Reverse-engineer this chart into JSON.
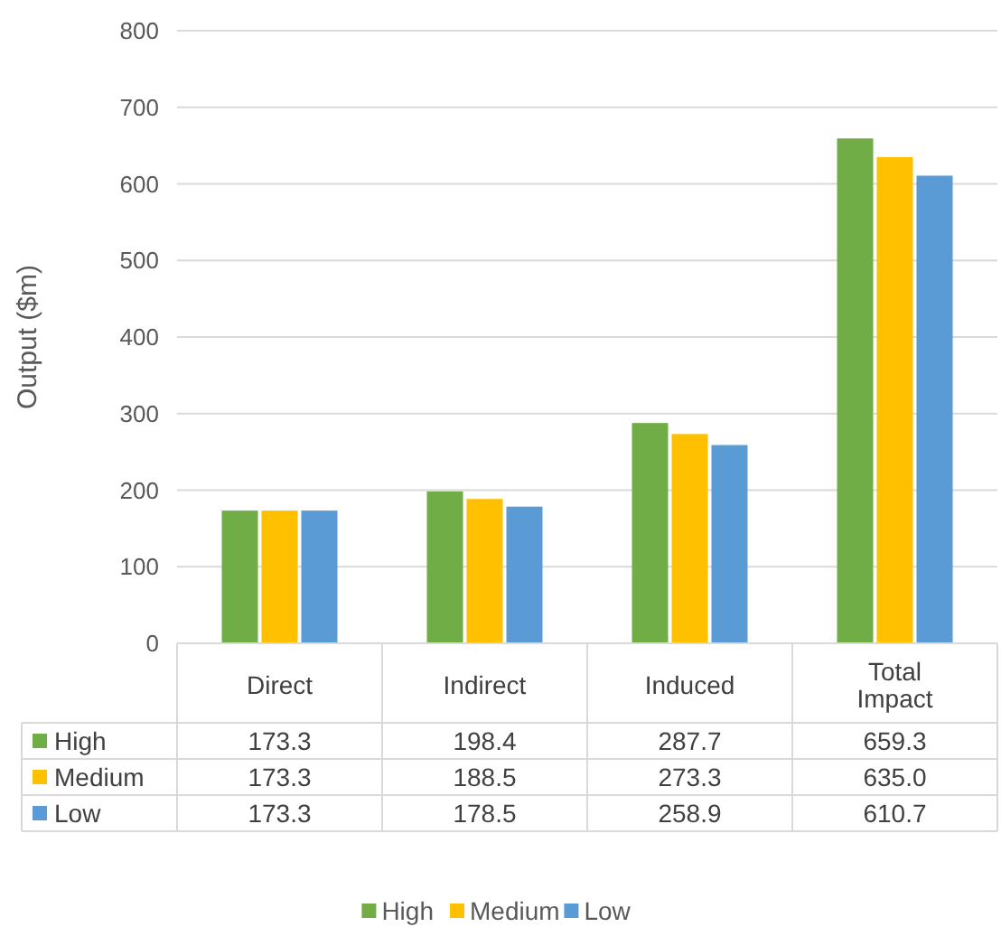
{
  "chart_data": {
    "type": "bar",
    "ylabel": "Output ($m)",
    "categories": [
      "Direct",
      "Indirect",
      "Induced",
      "Total Impact"
    ],
    "series": [
      {
        "name": "High",
        "color": "#70ad47",
        "values": [
          173.3,
          198.4,
          287.7,
          659.3
        ],
        "value_labels": [
          "173.3",
          "198.4",
          "287.7",
          "659.3"
        ]
      },
      {
        "name": "Medium",
        "color": "#ffc000",
        "values": [
          173.3,
          188.5,
          273.3,
          635.0
        ],
        "value_labels": [
          "173.3",
          "188.5",
          "273.3",
          "635.0"
        ]
      },
      {
        "name": "Low",
        "color": "#5b9bd5",
        "values": [
          173.3,
          178.5,
          258.9,
          610.7
        ],
        "value_labels": [
          "173.3",
          "178.5",
          "258.9",
          "610.7"
        ]
      }
    ],
    "ylim": [
      0,
      800
    ],
    "yticks": [
      0,
      100,
      200,
      300,
      400,
      500,
      600,
      700,
      800
    ],
    "grid": "y",
    "legend": "bottom"
  }
}
